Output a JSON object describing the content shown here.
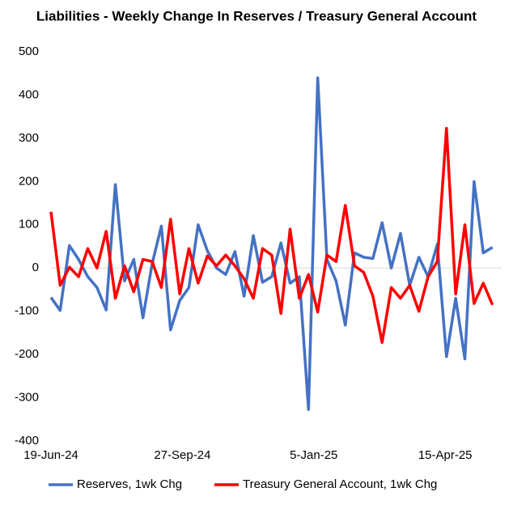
{
  "chart_data": {
    "type": "line",
    "title": "Liabilities - Weekly Change In Reserves / Treasury General Account",
    "x": [
      "2024-06-19",
      "2024-06-26",
      "2024-07-03",
      "2024-07-10",
      "2024-07-17",
      "2024-07-24",
      "2024-07-31",
      "2024-08-07",
      "2024-08-14",
      "2024-08-21",
      "2024-08-28",
      "2024-09-04",
      "2024-09-11",
      "2024-09-18",
      "2024-09-25",
      "2024-10-02",
      "2024-10-09",
      "2024-10-16",
      "2024-10-23",
      "2024-10-30",
      "2024-11-06",
      "2024-11-13",
      "2024-11-20",
      "2024-11-27",
      "2024-12-04",
      "2024-12-11",
      "2024-12-18",
      "2024-12-25",
      "2025-01-01",
      "2025-01-08",
      "2025-01-15",
      "2025-01-22",
      "2025-01-29",
      "2025-02-05",
      "2025-02-12",
      "2025-02-19",
      "2025-02-26",
      "2025-03-05",
      "2025-03-12",
      "2025-03-19",
      "2025-03-26",
      "2025-04-02",
      "2025-04-09",
      "2025-04-16",
      "2025-04-23",
      "2025-04-30",
      "2025-05-07",
      "2025-05-14",
      "2025-05-21"
    ],
    "series": [
      {
        "name": "Reserves, 1wk Chg",
        "color": "#4472c4",
        "values": [
          -68,
          -98,
          52,
          20,
          -20,
          -45,
          -97,
          193,
          -30,
          20,
          -115,
          10,
          97,
          -143,
          -75,
          -45,
          100,
          40,
          0,
          -15,
          38,
          -65,
          75,
          -33,
          -20,
          58,
          -35,
          -20,
          -327,
          440,
          20,
          -30,
          -132,
          35,
          25,
          22,
          105,
          0,
          80,
          -40,
          25,
          -20,
          55,
          -205,
          -70,
          -210,
          200,
          35,
          48
        ]
      },
      {
        "name": "Treasury General Account, 1wk Chg",
        "color": "#ff0000",
        "values": [
          130,
          -40,
          2,
          -20,
          45,
          0,
          85,
          -70,
          5,
          -55,
          20,
          15,
          -45,
          113,
          -60,
          45,
          -35,
          28,
          5,
          30,
          5,
          -25,
          -70,
          45,
          30,
          -105,
          90,
          -70,
          -15,
          -102,
          30,
          15,
          145,
          5,
          -10,
          -65,
          -172,
          -45,
          -70,
          -40,
          -100,
          -20,
          15,
          323,
          -60,
          100,
          -82,
          -35,
          -85
        ]
      }
    ],
    "xlim": [
      "2024-06-19",
      "2025-05-28"
    ],
    "xticks": [
      {
        "value": "2024-06-19",
        "label": "19-Jun-24"
      },
      {
        "value": "2024-09-27",
        "label": "27-Sep-24"
      },
      {
        "value": "2025-01-05",
        "label": "5-Jan-25"
      },
      {
        "value": "2025-04-15",
        "label": "15-Apr-25"
      }
    ],
    "ylim": [
      -400,
      500
    ],
    "yticks": [
      -400,
      -300,
      -200,
      -100,
      0,
      100,
      200,
      300,
      400,
      500
    ],
    "legend": "bottom"
  }
}
